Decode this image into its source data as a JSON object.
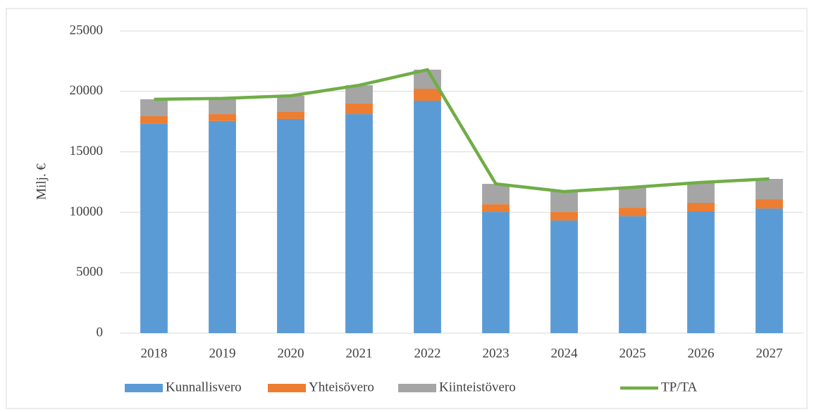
{
  "chart_data": {
    "type": "bar",
    "stacked": true,
    "y_label": "Milj. €",
    "categories": [
      "2018",
      "2019",
      "2020",
      "2021",
      "2022",
      "2023",
      "2024",
      "2025",
      "2026",
      "2027"
    ],
    "series": [
      {
        "name": "Kunnallisvero",
        "color": "#5b9bd5",
        "values": [
          17350,
          17550,
          17720,
          18120,
          19230,
          10020,
          9320,
          9670,
          10080,
          10310
        ]
      },
      {
        "name": "Yhteisövero",
        "color": "#ed7d31",
        "values": [
          600,
          570,
          580,
          880,
          990,
          640,
          700,
          700,
          700,
          760
        ]
      },
      {
        "name": "Kiinteistövero",
        "color": "#a5a5a5",
        "values": [
          1400,
          1300,
          1340,
          1510,
          1580,
          1690,
          1690,
          1690,
          1690,
          1690
        ]
      },
      {
        "name": "TP/TA",
        "color": "#70ad47",
        "type": "line",
        "values": [
          19350,
          19420,
          19640,
          20510,
          21800,
          12350,
          11710,
          12060,
          12470,
          12760
        ]
      }
    ],
    "ylim": [
      0,
      25000
    ],
    "yticks": [
      0,
      5000,
      10000,
      15000,
      20000,
      25000
    ],
    "grid": true,
    "legend": "bottom"
  }
}
